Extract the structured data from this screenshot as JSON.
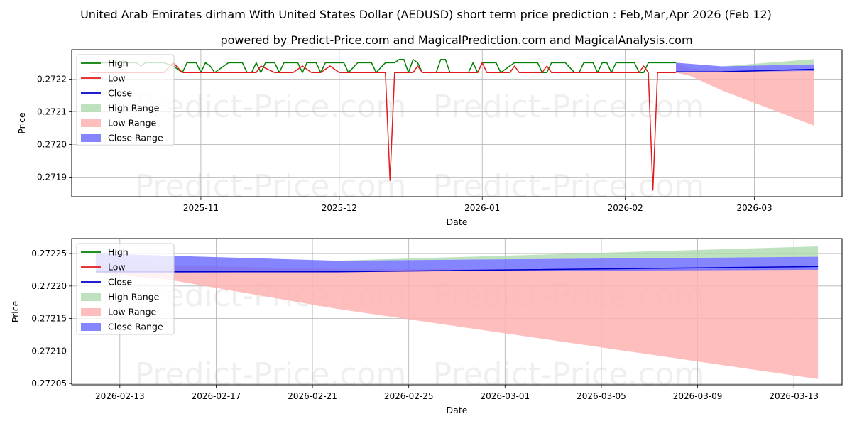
{
  "title": "United Arab Emirates dirham With United States Dollar (AEDUSD) short term price prediction : Feb,Mar,Apr 2026 (Feb 12)",
  "subtitle": "powered by Predict-Price.com and MagicalPrediction.com and MagicalAnalysis.com",
  "watermark": "Predict-Price.com",
  "colors": {
    "high": "#008000",
    "low": "#e41a1c",
    "close": "#0000cc",
    "high_range": "#a8d8a8",
    "low_range": "#ffb3b3",
    "close_range": "#6666ff"
  },
  "chart_data": [
    {
      "type": "line",
      "panel": "top",
      "xlabel": "Date",
      "ylabel": "Price",
      "grid": true,
      "legend_position": "top-left",
      "xlim": [
        "2025-10-04",
        "2026-03-20"
      ],
      "ylim": [
        0.27184,
        0.27229
      ],
      "x_ticks": [
        "2025-11-01",
        "2025-12-01",
        "2026-01-01",
        "2026-02-01",
        "2026-03-01"
      ],
      "x_tick_labels": [
        "2025-11",
        "2025-12",
        "2026-01",
        "2026-02",
        "2026-03"
      ],
      "y_ticks": [
        0.2719,
        0.272,
        0.2721,
        0.2722
      ],
      "y_tick_labels": [
        "0.2719",
        "0.2720",
        "0.2721",
        "0.2722"
      ],
      "legend": [
        "High",
        "Low",
        "Close",
        "High Range",
        "Low Range",
        "Close Range"
      ],
      "series": [
        {
          "name": "High",
          "x": [
            "2025-10-08",
            "2025-10-18",
            "2025-10-19",
            "2025-10-20",
            "2025-10-24",
            "2025-10-26",
            "2025-10-28",
            "2025-10-29",
            "2025-10-31",
            "2025-11-01",
            "2025-11-02",
            "2025-11-03",
            "2025-11-04",
            "2025-11-07",
            "2025-11-10",
            "2025-11-11",
            "2025-11-12",
            "2025-11-13",
            "2025-11-14",
            "2025-11-15",
            "2025-11-17",
            "2025-11-18",
            "2025-11-19",
            "2025-11-21",
            "2025-11-22",
            "2025-11-23",
            "2025-11-24",
            "2025-11-26",
            "2025-11-27",
            "2025-11-28",
            "2025-11-29",
            "2025-12-01",
            "2025-12-02",
            "2025-12-03",
            "2025-12-05",
            "2025-12-06",
            "2025-12-08",
            "2025-12-09",
            "2025-12-11",
            "2025-12-13",
            "2025-12-14",
            "2025-12-15",
            "2025-12-16",
            "2025-12-17",
            "2025-12-18",
            "2025-12-19",
            "2025-12-20",
            "2025-12-22",
            "2025-12-23",
            "2025-12-24",
            "2025-12-25",
            "2025-12-27",
            "2025-12-29",
            "2025-12-30",
            "2025-12-31",
            "2026-01-01",
            "2026-01-02",
            "2026-01-04",
            "2026-01-05",
            "2026-01-08",
            "2026-01-09",
            "2026-01-10",
            "2026-01-11",
            "2026-01-13",
            "2026-01-14",
            "2026-01-15",
            "2026-01-16",
            "2026-01-17",
            "2026-01-18",
            "2026-01-19",
            "2026-01-21",
            "2026-01-22",
            "2026-01-23",
            "2026-01-25",
            "2026-01-26",
            "2026-01-27",
            "2026-01-28",
            "2026-01-29",
            "2026-01-30",
            "2026-01-31",
            "2026-02-01",
            "2026-02-02",
            "2026-02-03",
            "2026-02-04",
            "2026-02-05",
            "2026-02-06",
            "2026-02-07",
            "2026-02-08",
            "2026-02-09",
            "2026-02-10",
            "2026-02-11",
            "2026-02-12"
          ],
          "values": [
            0.27225,
            0.27225,
            0.27224,
            0.27225,
            0.27225,
            0.27224,
            0.27222,
            0.27225,
            0.27225,
            0.27222,
            0.27225,
            0.27224,
            0.27222,
            0.27225,
            0.27225,
            0.27222,
            0.27222,
            0.27225,
            0.27222,
            0.27225,
            0.27225,
            0.27222,
            0.27225,
            0.27225,
            0.27225,
            0.27222,
            0.27225,
            0.27225,
            0.27222,
            0.27225,
            0.27225,
            0.27225,
            0.27225,
            0.27222,
            0.27225,
            0.27225,
            0.27225,
            0.27222,
            0.27225,
            0.27225,
            0.27226,
            0.27226,
            0.27222,
            0.27226,
            0.27225,
            0.27222,
            0.27222,
            0.27222,
            0.27226,
            0.27226,
            0.27222,
            0.27222,
            0.27222,
            0.27225,
            0.27222,
            0.27225,
            0.27225,
            0.27225,
            0.27222,
            0.27225,
            0.27225,
            0.27225,
            0.27225,
            0.27225,
            0.27222,
            0.27222,
            0.27225,
            0.27225,
            0.27225,
            0.27225,
            0.27222,
            0.27222,
            0.27225,
            0.27225,
            0.27222,
            0.27225,
            0.27225,
            0.27222,
            0.27225,
            0.27225,
            0.27225,
            0.27225,
            0.27225,
            0.27222,
            0.27222,
            0.27225,
            0.27225,
            0.27225,
            0.27225,
            0.27225,
            0.27225,
            0.27225
          ]
        },
        {
          "name": "Low",
          "x": [
            "2025-10-08",
            "2025-10-20",
            "2025-10-24",
            "2025-10-26",
            "2025-10-28",
            "2025-10-29",
            "2025-10-31",
            "2025-11-01",
            "2025-11-02",
            "2025-11-07",
            "2025-11-10",
            "2025-11-11",
            "2025-11-13",
            "2025-11-14",
            "2025-11-17",
            "2025-11-19",
            "2025-11-21",
            "2025-11-23",
            "2025-11-25",
            "2025-11-27",
            "2025-11-29",
            "2025-12-01",
            "2025-12-03",
            "2025-12-05",
            "2025-12-07",
            "2025-12-09",
            "2025-12-10",
            "2025-12-11",
            "2025-12-12",
            "2025-12-13",
            "2025-12-15",
            "2025-12-17",
            "2025-12-18",
            "2025-12-19",
            "2025-12-21",
            "2025-12-25",
            "2025-12-28",
            "2025-12-31",
            "2026-01-01",
            "2026-01-02",
            "2026-01-04",
            "2026-01-07",
            "2026-01-08",
            "2026-01-09",
            "2026-01-11",
            "2026-01-14",
            "2026-01-15",
            "2026-01-16",
            "2026-01-18",
            "2026-01-21",
            "2026-01-23",
            "2026-01-25",
            "2026-01-28",
            "2026-01-30",
            "2026-02-01",
            "2026-02-02",
            "2026-02-03",
            "2026-02-04",
            "2026-02-05",
            "2026-02-06",
            "2026-02-07",
            "2026-02-08",
            "2026-02-09",
            "2026-02-10",
            "2026-02-11",
            "2026-02-12"
          ],
          "values": [
            0.27222,
            0.27222,
            0.27222,
            0.27225,
            0.27222,
            0.27222,
            0.27222,
            0.27222,
            0.27222,
            0.27222,
            0.27222,
            0.27222,
            0.27222,
            0.27224,
            0.27222,
            0.27222,
            0.27222,
            0.27224,
            0.27222,
            0.27222,
            0.27224,
            0.27222,
            0.27222,
            0.27222,
            0.27222,
            0.27222,
            0.27222,
            0.27222,
            0.27189,
            0.27222,
            0.27222,
            0.27222,
            0.27224,
            0.27222,
            0.27222,
            0.27222,
            0.27222,
            0.27222,
            0.27225,
            0.27222,
            0.27222,
            0.27222,
            0.27224,
            0.27222,
            0.27222,
            0.27222,
            0.27224,
            0.27222,
            0.27222,
            0.27222,
            0.27222,
            0.27222,
            0.27222,
            0.27222,
            0.27222,
            0.27222,
            0.27222,
            0.27222,
            0.27224,
            0.27222,
            0.27186,
            0.27222,
            0.27222,
            0.27222,
            0.27222,
            0.27222
          ]
        },
        {
          "name": "Close",
          "x": [
            "2026-02-12",
            "2026-02-21",
            "2026-03-14"
          ],
          "values": [
            0.272222,
            0.272222,
            0.27223
          ]
        }
      ],
      "ranges": [
        {
          "name": "High Range",
          "x": [
            "2026-02-12",
            "2026-02-22",
            "2026-03-14"
          ],
          "upper": [
            0.27225,
            0.272239,
            0.272261
          ],
          "lower": [
            0.27225,
            0.272239,
            0.272245
          ]
        },
        {
          "name": "Low Range",
          "x": [
            "2026-02-12",
            "2026-02-15",
            "2026-02-22",
            "2026-03-14"
          ],
          "upper": [
            0.27225,
            0.272232,
            0.272226,
            0.272226
          ],
          "lower": [
            0.27222,
            0.27221,
            0.272165,
            0.272057
          ]
        },
        {
          "name": "Close Range",
          "x": [
            "2026-02-12",
            "2026-02-22",
            "2026-03-14"
          ],
          "upper": [
            0.27225,
            0.272239,
            0.272245
          ],
          "lower": [
            0.27222,
            0.272222,
            0.272225
          ]
        }
      ]
    },
    {
      "type": "line",
      "panel": "bottom",
      "xlabel": "Date",
      "ylabel": "Price",
      "grid": true,
      "legend_position": "top-left",
      "xlim": [
        "2026-02-11",
        "2026-03-15"
      ],
      "ylim": [
        0.272048,
        0.272273
      ],
      "x_ticks": [
        "2026-02-13",
        "2026-02-17",
        "2026-02-21",
        "2026-02-25",
        "2026-03-01",
        "2026-03-05",
        "2026-03-09",
        "2026-03-13"
      ],
      "x_tick_labels": [
        "2026-02-13",
        "2026-02-17",
        "2026-02-21",
        "2026-02-25",
        "2026-03-01",
        "2026-03-05",
        "2026-03-09",
        "2026-03-13"
      ],
      "y_ticks": [
        0.27205,
        0.2721,
        0.27215,
        0.2722,
        0.27225
      ],
      "y_tick_labels": [
        "0.27205",
        "0.27210",
        "0.27215",
        "0.27220",
        "0.27225"
      ],
      "legend": [
        "High",
        "Low",
        "Close",
        "High Range",
        "Low Range",
        "Close Range"
      ],
      "series": [
        {
          "name": "Close",
          "x": [
            "2026-02-12",
            "2026-02-22",
            "2026-03-14"
          ],
          "values": [
            0.272222,
            0.272222,
            0.27223
          ]
        }
      ],
      "ranges": [
        {
          "name": "High Range",
          "x": [
            "2026-02-12",
            "2026-02-22",
            "2026-03-14"
          ],
          "upper": [
            0.27225,
            0.272239,
            0.272261
          ],
          "lower": [
            0.27225,
            0.272239,
            0.272245
          ]
        },
        {
          "name": "Low Range",
          "x": [
            "2026-02-12",
            "2026-02-15",
            "2026-02-22",
            "2026-03-14"
          ],
          "upper": [
            0.27225,
            0.272232,
            0.272226,
            0.272226
          ],
          "lower": [
            0.27222,
            0.27221,
            0.272165,
            0.272057
          ]
        },
        {
          "name": "Close Range",
          "x": [
            "2026-02-12",
            "2026-02-22",
            "2026-03-14"
          ],
          "upper": [
            0.27225,
            0.272239,
            0.272245
          ],
          "lower": [
            0.27222,
            0.272222,
            0.272225
          ]
        }
      ]
    }
  ]
}
